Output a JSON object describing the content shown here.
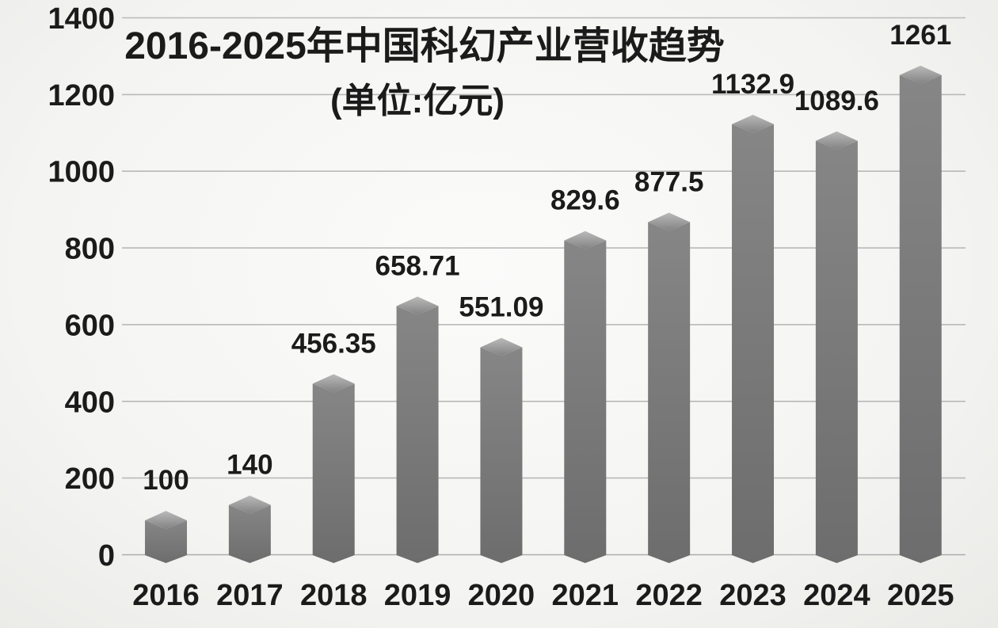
{
  "chart_data": {
    "type": "bar",
    "title": "2016-2025年中国科幻产业营收趋势",
    "subtitle": "(单位:亿元)",
    "unit": "亿元",
    "categories": [
      "2016",
      "2017",
      "2018",
      "2019",
      "2020",
      "2021",
      "2022",
      "2023",
      "2024",
      "2025"
    ],
    "values": [
      100,
      140,
      456.35,
      658.71,
      551.09,
      829.6,
      877.5,
      1132.9,
      1089.6,
      1261
    ],
    "value_labels": [
      "100",
      "140",
      "456.35",
      "658.71",
      "551.09",
      "829.6",
      "877.5",
      "1132.9",
      "1089.6",
      "1261"
    ],
    "xlabel": "",
    "ylabel": "",
    "ylim": [
      0,
      1400
    ],
    "ytick_labels": [
      "0",
      "200",
      "400",
      "600",
      "800",
      "1000",
      "1200",
      "1400"
    ],
    "ytick_values": [
      0,
      200,
      400,
      600,
      800,
      1000,
      1200,
      1400
    ],
    "grid": true,
    "legend": "none",
    "bar_style": "3d-box",
    "style": {
      "text_color": "#1b1b1b",
      "bar_front_light": "#868686",
      "bar_front_dark": "#6d6d6d",
      "bar_top_light": "#bababa",
      "bar_top_dark": "#828282",
      "gridline_color": "#b9b9b9",
      "axisline_color": "#adadad",
      "background_center": "#fbfbfa",
      "background_mid": "#f4f4f2",
      "background_edge": "#eaeae7"
    }
  }
}
